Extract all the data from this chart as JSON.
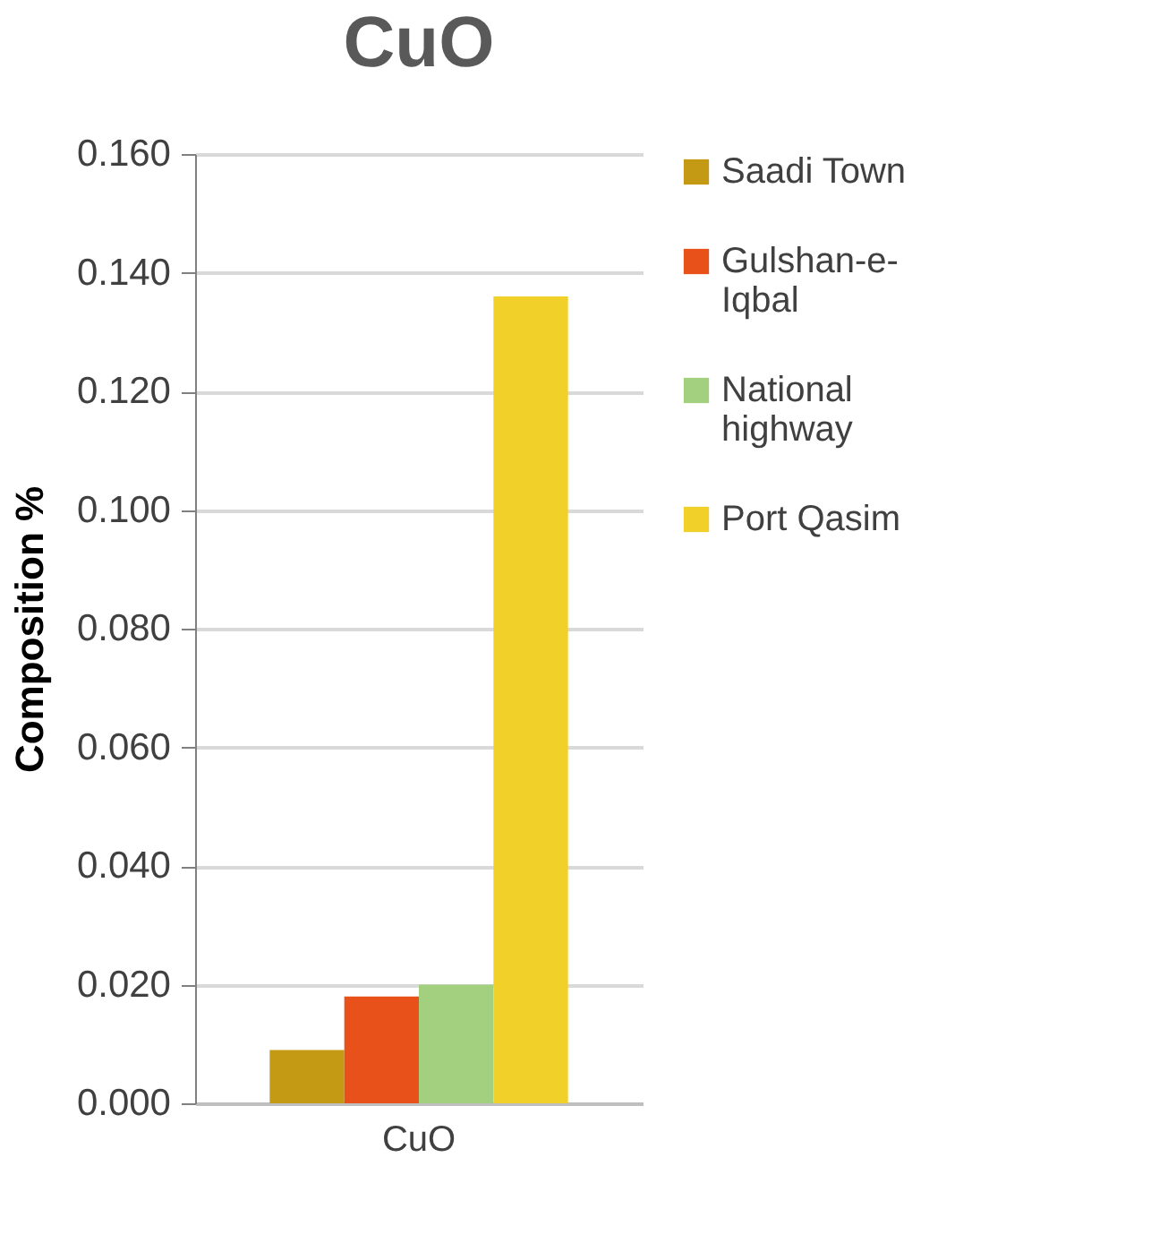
{
  "chart_data": {
    "type": "bar",
    "title": "CuO",
    "ylabel": "Composition %",
    "categories": [
      "CuO"
    ],
    "series": [
      {
        "name": "Saadi Town",
        "color": "#c49a14",
        "values": [
          0.009
        ]
      },
      {
        "name": "Gulshan-e-Iqbal",
        "color": "#e8521a",
        "values": [
          0.018
        ]
      },
      {
        "name": "National highway",
        "color": "#a3d07e",
        "values": [
          0.02
        ]
      },
      {
        "name": "Port Qasim",
        "color": "#f2d02a",
        "values": [
          0.136
        ]
      }
    ],
    "ylim": [
      0,
      0.16
    ],
    "yticks": [
      {
        "value": 0,
        "label": "0.000"
      },
      {
        "value": 0.02,
        "label": "0.020"
      },
      {
        "value": 0.04,
        "label": "0.040"
      },
      {
        "value": 0.06,
        "label": "0.060"
      },
      {
        "value": 0.08,
        "label": "0.080"
      },
      {
        "value": 0.1,
        "label": "0.100"
      },
      {
        "value": 0.12,
        "label": "0.120"
      },
      {
        "value": 0.14,
        "label": "0.140"
      },
      {
        "value": 0.16,
        "label": "0.160"
      }
    ],
    "grid": "y",
    "legend": "right"
  }
}
